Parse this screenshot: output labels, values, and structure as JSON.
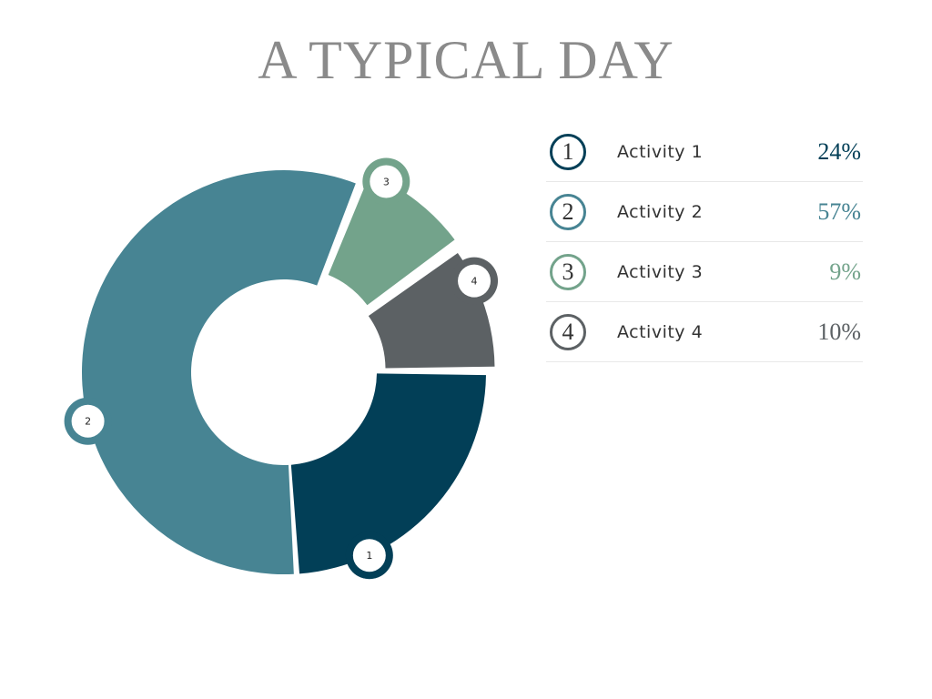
{
  "title": "A TYPICAL DAY",
  "chart_data": {
    "type": "pie",
    "variant": "donut",
    "title": "A TYPICAL DAY",
    "categories": [
      "Activity 1",
      "Activity 2",
      "Activity 3",
      "Activity 4"
    ],
    "slice_numbers": [
      "1",
      "2",
      "3",
      "4"
    ],
    "values": [
      24,
      57,
      9,
      10
    ],
    "value_labels": [
      "24%",
      "57%",
      "9%",
      "10%"
    ],
    "unit": "%",
    "colors": [
      "#023f57",
      "#478493",
      "#73a38b",
      "#5c6164"
    ],
    "legend_position": "right"
  }
}
